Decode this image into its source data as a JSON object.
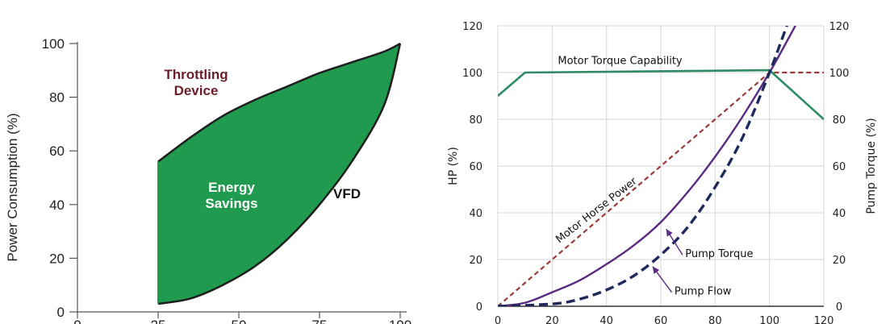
{
  "chart_data": [
    {
      "type": "area",
      "title": "",
      "xlabel": "",
      "ylabel": "Power Consumption (%)",
      "xlim": [
        0,
        100
      ],
      "ylim": [
        0,
        100
      ],
      "yticks": [
        0,
        20,
        40,
        60,
        80,
        100
      ],
      "xticks": [
        0,
        25,
        50,
        75,
        100
      ],
      "grid": false,
      "series": [
        {
          "name": "Throttling Device",
          "color": "#1e1e1e",
          "x": [
            25,
            35,
            45,
            55,
            65,
            75,
            85,
            95,
            100
          ],
          "y": [
            56,
            65,
            73,
            79,
            84,
            89,
            93,
            97,
            100
          ]
        },
        {
          "name": "VFD",
          "color": "#1e1e1e",
          "x": [
            25,
            35,
            45,
            55,
            65,
            75,
            85,
            95,
            100
          ],
          "y": [
            3,
            5,
            10,
            17,
            27,
            40,
            56,
            77,
            100
          ]
        }
      ],
      "fill": {
        "color": "#1f9a4e",
        "between": [
          "Throttling Device",
          "VFD"
        ]
      },
      "annotations": [
        {
          "text": "Throttling\nDevice",
          "color": "#6b1e2a"
        },
        {
          "text": "Energy\nSavings",
          "color": "#ffffff"
        },
        {
          "text": "VFD",
          "color": "#111111"
        }
      ]
    },
    {
      "type": "line",
      "title": "",
      "xlabel": "",
      "ylabel": "HP (%)",
      "y2label": "Pump Torque (%)",
      "xlim": [
        0,
        120
      ],
      "ylim": [
        0,
        120
      ],
      "y2lim": [
        0,
        120
      ],
      "xticks": [
        0,
        20,
        40,
        60,
        80,
        100,
        120
      ],
      "yticks": [
        0,
        20,
        40,
        60,
        80,
        100,
        120
      ],
      "y2ticks": [
        0,
        20,
        40,
        60,
        80,
        100,
        120
      ],
      "grid": true,
      "series": [
        {
          "name": "Motor Torque Capability",
          "color": "#2e8b63",
          "style": "solid",
          "x": [
            0,
            10,
            100,
            120
          ],
          "y": [
            90,
            100,
            101,
            80
          ]
        },
        {
          "name": "Motor Horse Power",
          "color": "#9a3a3a",
          "style": "dashed",
          "x": [
            0,
            100,
            120
          ],
          "y": [
            0,
            100,
            100
          ]
        },
        {
          "name": "Pump Torque",
          "color": "#5a2a82",
          "style": "solid",
          "x": [
            0,
            10,
            20,
            30,
            40,
            50,
            60,
            70,
            80,
            90,
            100,
            110
          ],
          "y": [
            0,
            1.5,
            6,
            11,
            18,
            26,
            36,
            49,
            64,
            81,
            100,
            121
          ]
        },
        {
          "name": "Pump Flow",
          "color": "#1f2a5c",
          "style": "dashed",
          "x": [
            0,
            20,
            30,
            40,
            50,
            60,
            70,
            80,
            90,
            100,
            107
          ],
          "y": [
            0,
            1,
            3,
            7,
            13,
            22,
            34,
            51,
            72,
            100,
            122
          ]
        }
      ],
      "annotations": [
        {
          "text": "Motor Torque Capability",
          "target": "Motor Torque Capability"
        },
        {
          "text": "Motor Horse Power",
          "target": "Motor Horse Power"
        },
        {
          "text": "Pump Torque",
          "target": "Pump Torque"
        },
        {
          "text": "Pump Flow",
          "target": "Pump Flow"
        }
      ]
    }
  ]
}
